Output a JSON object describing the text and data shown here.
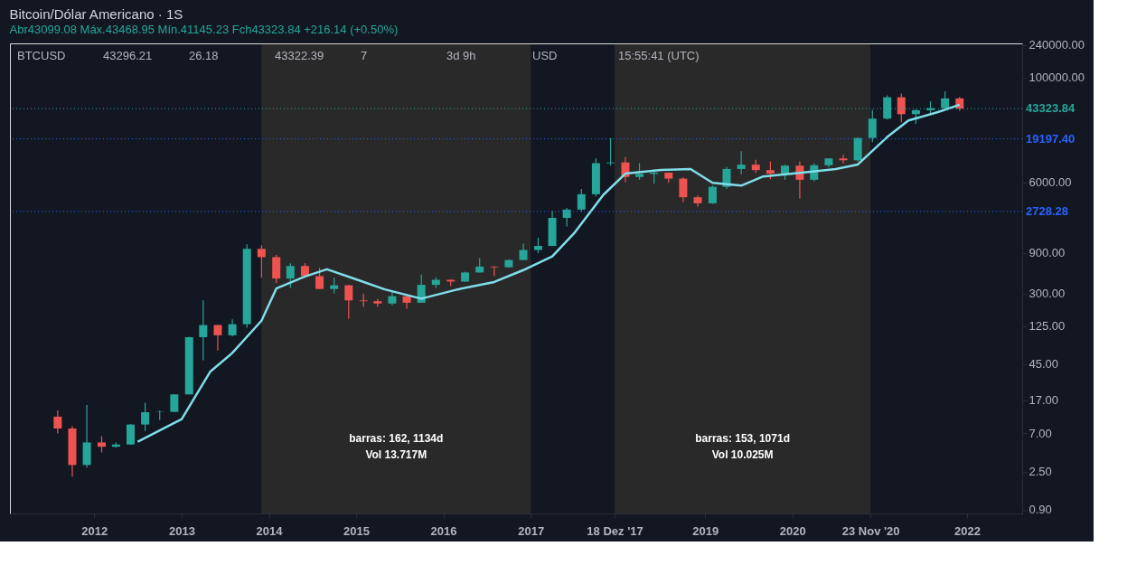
{
  "chart_data": {
    "type": "candlestick",
    "title": "Bitcoin/Dólar Americano · 1S",
    "subtitle": "Abr43099.08 Máx.43468.95 Mín.41145.23 Fch43323.84 +216.14 (+0.50%)",
    "x": [
      "2011-08",
      "2011-10",
      "2011-12",
      "2012-02",
      "2012-04",
      "2012-06",
      "2012-08",
      "2012-10",
      "2012-12",
      "2013-02",
      "2013-04",
      "2013-06",
      "2013-08",
      "2013-10",
      "2013-12",
      "2014-02",
      "2014-04",
      "2014-06",
      "2014-08",
      "2014-10",
      "2014-12",
      "2015-02",
      "2015-04",
      "2015-06",
      "2015-08",
      "2015-10",
      "2015-12",
      "2016-02",
      "2016-04",
      "2016-06",
      "2016-08",
      "2016-10",
      "2016-12",
      "2017-02",
      "2017-04",
      "2017-06",
      "2017-08",
      "2017-10",
      "2017-12",
      "2018-02",
      "2018-04",
      "2018-06",
      "2018-08",
      "2018-10",
      "2018-12",
      "2019-02",
      "2019-04",
      "2019-06",
      "2019-08",
      "2019-10",
      "2019-12",
      "2020-02",
      "2020-04",
      "2020-06",
      "2020-08",
      "2020-10",
      "2020-12",
      "2021-02",
      "2021-04",
      "2021-06",
      "2021-08",
      "2021-10",
      "2021-12"
    ],
    "ohlc": [
      [
        11,
        13,
        7,
        8
      ],
      [
        8,
        8.5,
        2.2,
        3
      ],
      [
        3,
        15,
        2.8,
        5.5
      ],
      [
        5.5,
        6.5,
        4.2,
        4.9
      ],
      [
        4.9,
        5.5,
        4.8,
        5.2
      ],
      [
        5.2,
        9,
        5.2,
        8.9
      ],
      [
        8.9,
        16,
        7.5,
        12.4
      ],
      [
        12.4,
        13,
        10,
        12.5
      ],
      [
        12.5,
        20,
        12.5,
        20
      ],
      [
        20,
        94,
        20,
        93
      ],
      [
        93,
        250,
        50,
        129
      ],
      [
        129,
        130,
        65,
        98
      ],
      [
        98,
        150,
        95,
        132
      ],
      [
        132,
        1127,
        120,
        1000
      ],
      [
        1000,
        1100,
        460,
        800
      ],
      [
        800,
        850,
        400,
        450
      ],
      [
        450,
        680,
        350,
        630
      ],
      [
        630,
        680,
        480,
        480
      ],
      [
        480,
        600,
        340,
        340
      ],
      [
        340,
        460,
        300,
        375
      ],
      [
        375,
        380,
        152,
        250
      ],
      [
        250,
        300,
        210,
        245
      ],
      [
        245,
        260,
        210,
        230
      ],
      [
        230,
        320,
        220,
        280
      ],
      [
        280,
        285,
        200,
        235
      ],
      [
        235,
        500,
        235,
        380
      ],
      [
        380,
        465,
        350,
        435
      ],
      [
        435,
        440,
        370,
        415
      ],
      [
        415,
        540,
        410,
        530
      ],
      [
        530,
        780,
        530,
        620
      ],
      [
        620,
        630,
        480,
        610
      ],
      [
        610,
        750,
        605,
        740
      ],
      [
        740,
        1150,
        740,
        970
      ],
      [
        970,
        1350,
        890,
        1080
      ],
      [
        1080,
        2780,
        1080,
        2300
      ],
      [
        2300,
        3000,
        1830,
        2870
      ],
      [
        2870,
        5000,
        2700,
        4340
      ],
      [
        4340,
        11400,
        4100,
        10000
      ],
      [
        10000,
        19666,
        9400,
        10200
      ],
      [
        10200,
        11800,
        6000,
        6900
      ],
      [
        6900,
        10000,
        6400,
        7500
      ],
      [
        7500,
        8500,
        5750,
        7750
      ],
      [
        7750,
        7800,
        5900,
        6600
      ],
      [
        6600,
        6800,
        3500,
        4000
      ],
      [
        4000,
        4200,
        3120,
        3400
      ],
      [
        3400,
        5500,
        3350,
        5300
      ],
      [
        5300,
        9000,
        5000,
        8550
      ],
      [
        8550,
        13800,
        7400,
        9600
      ],
      [
        9600,
        10950,
        7700,
        8300
      ],
      [
        8300,
        10500,
        6500,
        7550
      ],
      [
        7550,
        9600,
        6400,
        9350
      ],
      [
        9350,
        10500,
        3850,
        6400
      ],
      [
        6400,
        10000,
        6150,
        9450
      ],
      [
        9450,
        11400,
        8900,
        11350
      ],
      [
        11350,
        12500,
        9850,
        10800
      ],
      [
        10800,
        19900,
        10400,
        19700
      ],
      [
        19700,
        41950,
        17600,
        33100
      ],
      [
        33100,
        61800,
        32300,
        58800
      ],
      [
        58800,
        64900,
        30000,
        37300
      ],
      [
        37300,
        42500,
        28800,
        41500
      ],
      [
        41500,
        52900,
        37300,
        43800
      ],
      [
        43800,
        69000,
        42000,
        57000
      ],
      [
        57000,
        59100,
        41000,
        43323.84
      ]
    ],
    "colors": [
      "#ef5350",
      "#ef5350",
      "#26a69a",
      "#ef5350",
      "#26a69a",
      "#26a69a",
      "#26a69a",
      "#26a69a",
      "#26a69a",
      "#26a69a",
      "#26a69a",
      "#ef5350",
      "#26a69a",
      "#26a69a",
      "#ef5350",
      "#ef5350",
      "#26a69a",
      "#ef5350",
      "#ef5350",
      "#26a69a",
      "#ef5350",
      "#ef5350",
      "#ef5350",
      "#26a69a",
      "#ef5350",
      "#26a69a",
      "#26a69a",
      "#ef5350",
      "#26a69a",
      "#26a69a",
      "#ef5350",
      "#26a69a",
      "#26a69a",
      "#26a69a",
      "#26a69a",
      "#26a69a",
      "#26a69a",
      "#26a69a",
      "#26a69a",
      "#ef5350",
      "#26a69a",
      "#26a69a",
      "#ef5350",
      "#ef5350",
      "#ef5350",
      "#26a69a",
      "#26a69a",
      "#26a69a",
      "#ef5350",
      "#ef5350",
      "#26a69a",
      "#ef5350",
      "#26a69a",
      "#26a69a",
      "#ef5350",
      "#26a69a",
      "#26a69a",
      "#26a69a",
      "#ef5350",
      "#26a69a",
      "#26a69a",
      "#26a69a",
      "#ef5350"
    ],
    "series": [
      {
        "type": "line",
        "color": "#80deea",
        "x": [
          "2012-07",
          "2013-01",
          "2013-05",
          "2013-08",
          "2013-12",
          "2014-02",
          "2014-06",
          "2014-09",
          "2015-01",
          "2015-05",
          "2015-10",
          "2016-03",
          "2016-08",
          "2016-12",
          "2017-04",
          "2017-07",
          "2017-11",
          "2018-02",
          "2018-07",
          "2018-11",
          "2019-02",
          "2019-06",
          "2019-09",
          "2020-02",
          "2020-07",
          "2020-10",
          "2021-02",
          "2021-05",
          "2021-09",
          "2021-12"
        ],
        "values": [
          5.6,
          10.3,
          37,
          61,
          145,
          344,
          475,
          578,
          441,
          336,
          262,
          336,
          410,
          565,
          817,
          1514,
          4270,
          7540,
          8310,
          8530,
          5890,
          5470,
          7000,
          7720,
          8530,
          9650,
          20200,
          31500,
          39400,
          48000
        ]
      }
    ],
    "xlim": [
      "2011-02",
      "2022-08"
    ],
    "xticks": [
      "2012",
      "2013",
      "2014",
      "2015",
      "2016",
      "2017",
      {
        "value": "2017-12-18",
        "label": "18 Dez '17"
      },
      "2019",
      "2020",
      {
        "value": "2020-11-23",
        "label": "23 Nov '20"
      },
      "2022"
    ],
    "ylim": [
      0.815,
      250000
    ],
    "yticks": [
      {
        "value": 0.9,
        "label": "0.90"
      },
      {
        "value": 2.5,
        "label": "2.50"
      },
      {
        "value": 7,
        "label": "7.00"
      },
      {
        "value": 17,
        "label": "17.00"
      },
      {
        "value": 45,
        "label": "45.00"
      },
      {
        "value": 125,
        "label": "125.00"
      },
      {
        "value": 300,
        "label": "300.00"
      },
      {
        "value": 900,
        "label": "900.00"
      },
      {
        "value": 6000,
        "label": "6000.00"
      },
      {
        "value": 100000,
        "label": "100000.00"
      },
      {
        "value": 240000,
        "label": "240000.00"
      }
    ],
    "log": "y",
    "ref_lines": [
      {
        "axis": "y",
        "value": 43323.84,
        "label": "43323.84",
        "color": "#26a69a",
        "line_style": "dotted"
      },
      {
        "axis": "y",
        "value": 19197.4,
        "label": "19197.40",
        "color": "#2962ff",
        "line_style": "dotted"
      },
      {
        "axis": "y",
        "value": 2728.28,
        "label": "2728.28",
        "color": "#2962ff",
        "line_style": "dotted"
      }
    ],
    "bands": [
      {
        "axis": "x",
        "from": "2013-12-01",
        "to": "2017-01-01",
        "label": "barras: 162, 1134d\nVol 13.717M",
        "color": "#c8a060"
      },
      {
        "axis": "x",
        "from": "2017-12-18",
        "to": "2020-11-23",
        "label": "barras: 153, 1071d\nVol 10.025M",
        "color": "#c8a060"
      }
    ],
    "annotations": [
      "BTCUSD",
      "43296.21",
      "26.18",
      "43322.39",
      "7",
      "3d 9h",
      "USD",
      "15:55:41 (UTC)"
    ]
  }
}
